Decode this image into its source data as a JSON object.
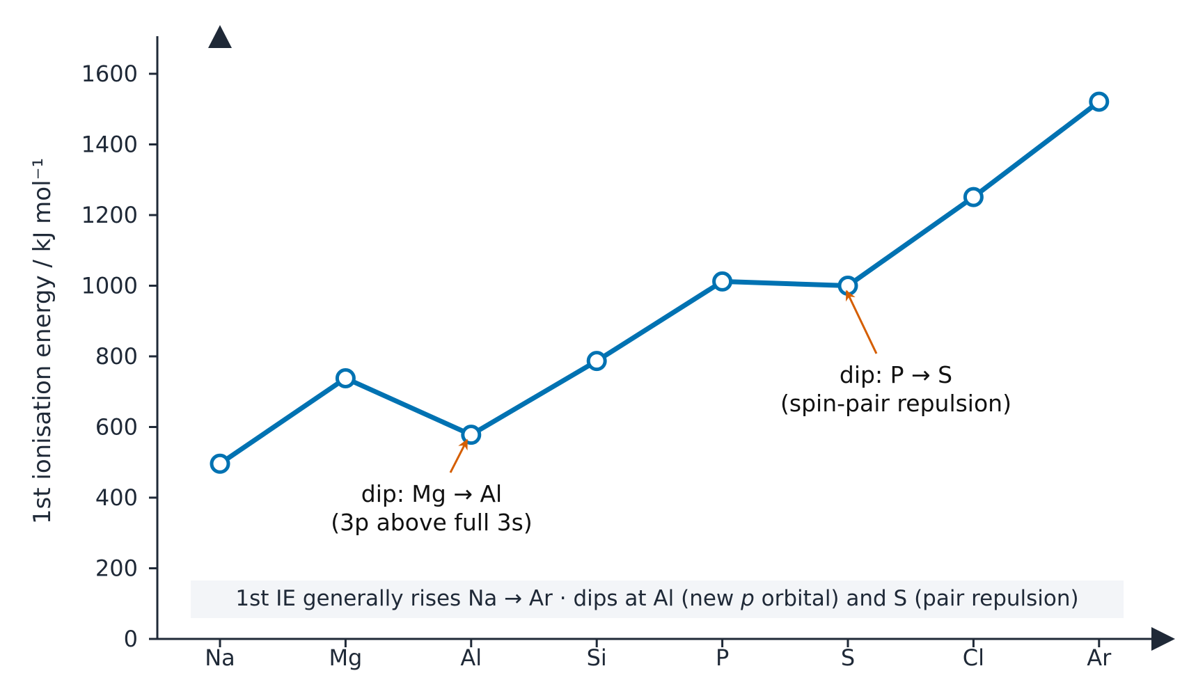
{
  "chart_data": {
    "type": "line",
    "title": "",
    "xlabel": "",
    "ylabel": "1st ionisation energy / kJ mol⁻¹",
    "categories": [
      "Na",
      "Mg",
      "Al",
      "Si",
      "P",
      "S",
      "Cl",
      "Ar"
    ],
    "series": [
      {
        "values": [
          496,
          738,
          578,
          787,
          1012,
          1000,
          1251,
          1521
        ]
      }
    ],
    "ylim": [
      0,
      1700
    ],
    "yticks": [
      0,
      200,
      400,
      600,
      800,
      1000,
      1200,
      1400,
      1600
    ],
    "grid": false,
    "legend": "none",
    "annotations": [
      {
        "target": "Al",
        "line1": "dip: Mg → Al",
        "line2": "(3p above full 3s)"
      },
      {
        "target": "S",
        "line1": "dip: P → S",
        "line2": "(spin-pair repulsion)"
      }
    ],
    "note": {
      "part1": "1st IE generally rises Na → Ar  ·  dips at Al (new ",
      "italic": "p",
      "part2": " orbital) and S (pair repulsion)"
    }
  },
  "colors": {
    "series": "#0072b2",
    "marker_fill": "#ffffff",
    "axis": "#1f2937",
    "annotation_arrow": "#d55e00",
    "note_background": "#f3f5f8"
  }
}
